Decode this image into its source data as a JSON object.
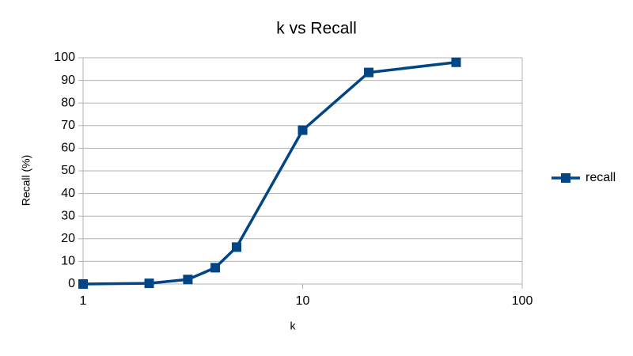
{
  "chart_data": {
    "type": "line",
    "title": "k vs Recall",
    "xlabel": "k",
    "ylabel": "Recall (%)",
    "x": [
      1,
      2,
      3,
      4,
      5,
      10,
      20,
      50
    ],
    "series": [
      {
        "name": "recall",
        "color": "#004586",
        "values": [
          0,
          0.3,
          2,
          7.2,
          16.3,
          68,
          93.5,
          98
        ]
      }
    ],
    "xlim": [
      1,
      100
    ],
    "xticks": [
      1,
      10,
      100
    ],
    "xscale": "log",
    "ylim": [
      0,
      100
    ],
    "yticks": [
      0,
      10,
      20,
      30,
      40,
      50,
      60,
      70,
      80,
      90,
      100
    ],
    "grid": true,
    "legend": "right"
  }
}
